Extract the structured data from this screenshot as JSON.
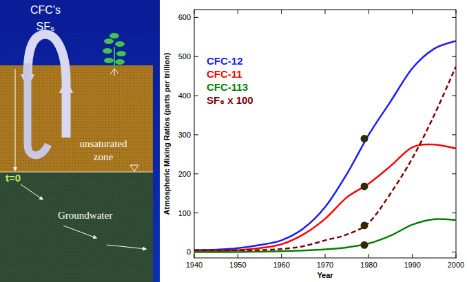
{
  "chart_data": {
    "type": "line",
    "x_label": "Year",
    "y_label": "Atmospheric Mixing Ratios (parts per trillion)",
    "x": [
      1940,
      1945,
      1950,
      1955,
      1960,
      1965,
      1970,
      1975,
      1980,
      1985,
      1990,
      1995,
      2000
    ],
    "series": [
      {
        "name": "CFC-12",
        "color": "#1a1aff",
        "line_style": "solid",
        "values": [
          5,
          6,
          10,
          18,
          30,
          60,
          115,
          200,
          300,
          385,
          470,
          520,
          540
        ]
      },
      {
        "name": "CFC-11",
        "color": "#ff0000",
        "line_style": "solid",
        "values": [
          2,
          3,
          5,
          10,
          20,
          45,
          85,
          140,
          175,
          220,
          268,
          275,
          265
        ]
      },
      {
        "name": "CFC-113",
        "color": "#008000",
        "line_style": "solid",
        "values": [
          0,
          0,
          0,
          1,
          2,
          4,
          7,
          12,
          22,
          42,
          70,
          84,
          82
        ]
      },
      {
        "name": "SF₆ x 100",
        "color": "#800000",
        "line_style": "dashed",
        "values": [
          5,
          5,
          5,
          5,
          8,
          15,
          30,
          45,
          75,
          150,
          240,
          350,
          475
        ]
      }
    ],
    "marked_points": {
      "x": [
        1979,
        1979,
        1979,
        1979
      ],
      "values": [
        290,
        168,
        68,
        18
      ]
    },
    "xlim": [
      1940,
      2000
    ],
    "xticks": [
      1940,
      1950,
      1960,
      1970,
      1980,
      1990,
      2000
    ],
    "ylim": [
      -15,
      620
    ],
    "yticks": [
      0,
      100,
      200,
      300,
      400,
      500,
      600
    ],
    "legend": "upper left",
    "grid": false
  },
  "diagram": {
    "gases": [
      "CFC's",
      "SF₆"
    ],
    "unsaturated_zone": "unsaturated zone",
    "time_zero": "t=0",
    "groundwater": "Groundwater"
  }
}
